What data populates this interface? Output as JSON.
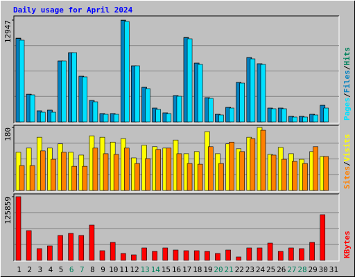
{
  "chart_data": [
    {
      "type": "bar",
      "title": "Daily usage for April 2024",
      "categories": [
        "1",
        "2",
        "3",
        "4",
        "5",
        "6",
        "7",
        "8",
        "9",
        "10",
        "11",
        "12",
        "13",
        "14",
        "15",
        "16",
        "17",
        "18",
        "19",
        "20",
        "21",
        "22",
        "23",
        "24",
        "25",
        "26",
        "27",
        "28",
        "29",
        "30",
        "31"
      ],
      "category_colors": [
        "#000000",
        "#000000",
        "#000000",
        "#000000",
        "#000000",
        "#00805c",
        "#00805c",
        "#000000",
        "#000000",
        "#000000",
        "#000000",
        "#000000",
        "#00805c",
        "#00805c",
        "#000000",
        "#000000",
        "#000000",
        "#000000",
        "#000000",
        "#00805c",
        "#00805c",
        "#000000",
        "#000000",
        "#000000",
        "#000000",
        "#000000",
        "#00805c",
        "#00805c",
        "#000000",
        "#000000",
        "#000000"
      ],
      "legend_separator": "/",
      "ylim": [
        0,
        12947
      ],
      "yticks": [
        12947
      ],
      "series": [
        {
          "name": "Hits",
          "color": "#00805c",
          "values": [
            10657,
            3523,
            1409,
            1497,
            7750,
            8807,
            5813,
            2730,
            1057,
            1057,
            12947,
            7134,
            4404,
            1761,
            1145,
            3347,
            10745,
            7486,
            3082,
            969,
            1849,
            5020,
            8191,
            7398,
            1761,
            1761,
            705,
            705,
            969,
            2114,
            null
          ]
        },
        {
          "name": "Files",
          "color": "#0080c0",
          "values": [
            10600,
            3500,
            1400,
            1490,
            7740,
            8790,
            5800,
            2720,
            1050,
            1050,
            12900,
            7120,
            4390,
            1750,
            1140,
            3340,
            10700,
            7470,
            3070,
            960,
            1840,
            5010,
            8180,
            7390,
            1750,
            1750,
            700,
            700,
            960,
            2100,
            null
          ]
        },
        {
          "name": "Pages",
          "color": "#00e0ff",
          "values": [
            10393,
            3435,
            1233,
            1233,
            7750,
            8807,
            5725,
            2554,
            969,
            969,
            12771,
            7134,
            4228,
            1585,
            1057,
            3259,
            10569,
            7310,
            2994,
            881,
            1761,
            4932,
            8015,
            7310,
            1673,
            1673,
            617,
            617,
            881,
            1761,
            null
          ]
        }
      ]
    },
    {
      "type": "bar",
      "legend_separator": "/",
      "ylim": [
        0,
        180
      ],
      "yticks": [
        180
      ],
      "series": [
        {
          "name": "Visits",
          "color": "#ffff00",
          "values": [
            109,
            121,
            152,
            121,
            133,
            109,
            101,
            156,
            152,
            138,
            148,
            93,
            129,
            125,
            121,
            144,
            105,
            111,
            168,
            105,
            133,
            119,
            152,
            180,
            103,
            123,
            105,
            89,
            111,
            97,
            null
          ]
        },
        {
          "name": "Sites",
          "color": "#ff8000",
          "values": [
            71,
            71,
            113,
            89,
            109,
            69,
            69,
            121,
            105,
            103,
            121,
            77,
            91,
            117,
            121,
            105,
            77,
            75,
            125,
            77,
            138,
            111,
            148,
            172,
            101,
            89,
            83,
            77,
            125,
            97,
            null
          ]
        }
      ]
    },
    {
      "type": "bar",
      "ylim": [
        0,
        125859
      ],
      "yticks": [
        125859
      ],
      "series": [
        {
          "name": "KBytes",
          "color": "#ff0000",
          "values": [
            125859,
            58824,
            23256,
            28728,
            49248,
            53352,
            49248,
            69768,
            19152,
            35568,
            13680,
            10944,
            24624,
            17784,
            24624,
            20520,
            19152,
            19152,
            17784,
            13680,
            20520,
            6840,
            24624,
            24624,
            34200,
            17784,
            24624,
            23256,
            35568,
            90288,
            null
          ]
        }
      ]
    }
  ]
}
